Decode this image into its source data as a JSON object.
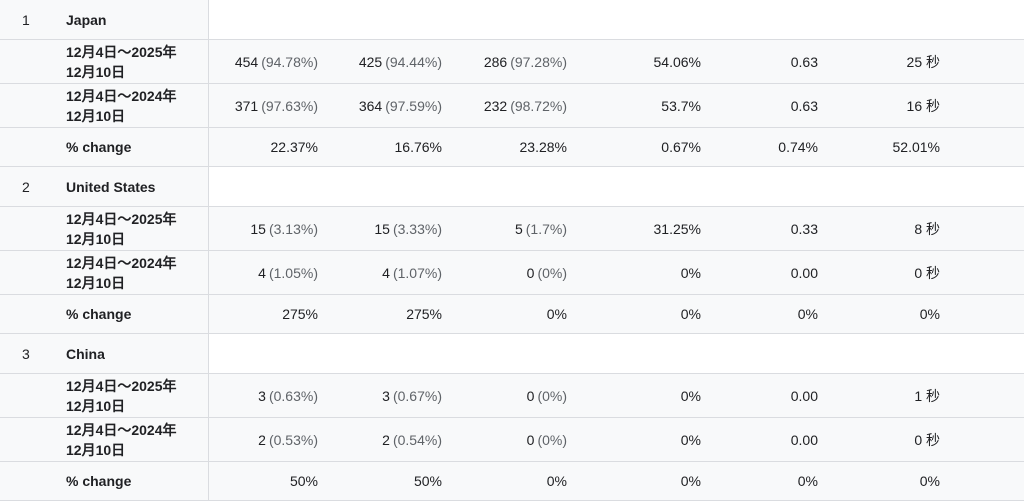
{
  "countries": [
    {
      "rank": "1",
      "name": "Japan",
      "rows": [
        {
          "date_line1": "12月4日～2025年",
          "date_line2": "12月10日",
          "c1_val": "454",
          "c1_pct": "(94.78%)",
          "c2_val": "425",
          "c2_pct": "(94.44%)",
          "c3_val": "286",
          "c3_pct": "(97.28%)",
          "c4": "54.06%",
          "c5": "0.63",
          "c6": "25 秒"
        },
        {
          "date_line1": "12月4日～2024年",
          "date_line2": "12月10日",
          "c1_val": "371",
          "c1_pct": "(97.63%)",
          "c2_val": "364",
          "c2_pct": "(97.59%)",
          "c3_val": "232",
          "c3_pct": "(98.72%)",
          "c4": "53.7%",
          "c5": "0.63",
          "c6": "16 秒"
        }
      ],
      "change": {
        "label": "% change",
        "c1": "22.37%",
        "c2": "16.76%",
        "c3": "23.28%",
        "c4": "0.67%",
        "c5": "0.74%",
        "c6": "52.01%"
      }
    },
    {
      "rank": "2",
      "name": "United States",
      "rows": [
        {
          "date_line1": "12月4日～2025年",
          "date_line2": "12月10日",
          "c1_val": "15",
          "c1_pct": "(3.13%)",
          "c2_val": "15",
          "c2_pct": "(3.33%)",
          "c3_val": "5",
          "c3_pct": "(1.7%)",
          "c4": "31.25%",
          "c5": "0.33",
          "c6": "8 秒"
        },
        {
          "date_line1": "12月4日～2024年",
          "date_line2": "12月10日",
          "c1_val": "4",
          "c1_pct": "(1.05%)",
          "c2_val": "4",
          "c2_pct": "(1.07%)",
          "c3_val": "0",
          "c3_pct": "(0%)",
          "c4": "0%",
          "c5": "0.00",
          "c6": "0 秒"
        }
      ],
      "change": {
        "label": "% change",
        "c1": "275%",
        "c2": "275%",
        "c3": "0%",
        "c4": "0%",
        "c5": "0%",
        "c6": "0%"
      }
    },
    {
      "rank": "3",
      "name": "China",
      "rows": [
        {
          "date_line1": "12月4日～2025年",
          "date_line2": "12月10日",
          "c1_val": "3",
          "c1_pct": "(0.63%)",
          "c2_val": "3",
          "c2_pct": "(0.67%)",
          "c3_val": "0",
          "c3_pct": "(0%)",
          "c4": "0%",
          "c5": "0.00",
          "c6": "1 秒"
        },
        {
          "date_line1": "12月4日～2024年",
          "date_line2": "12月10日",
          "c1_val": "2",
          "c1_pct": "(0.53%)",
          "c2_val": "2",
          "c2_pct": "(0.54%)",
          "c3_val": "0",
          "c3_pct": "(0%)",
          "c4": "0%",
          "c5": "0.00",
          "c6": "0 秒"
        }
      ],
      "change": {
        "label": "% change",
        "c1": "50%",
        "c2": "50%",
        "c3": "0%",
        "c4": "0%",
        "c5": "0%",
        "c6": "0%"
      }
    }
  ]
}
